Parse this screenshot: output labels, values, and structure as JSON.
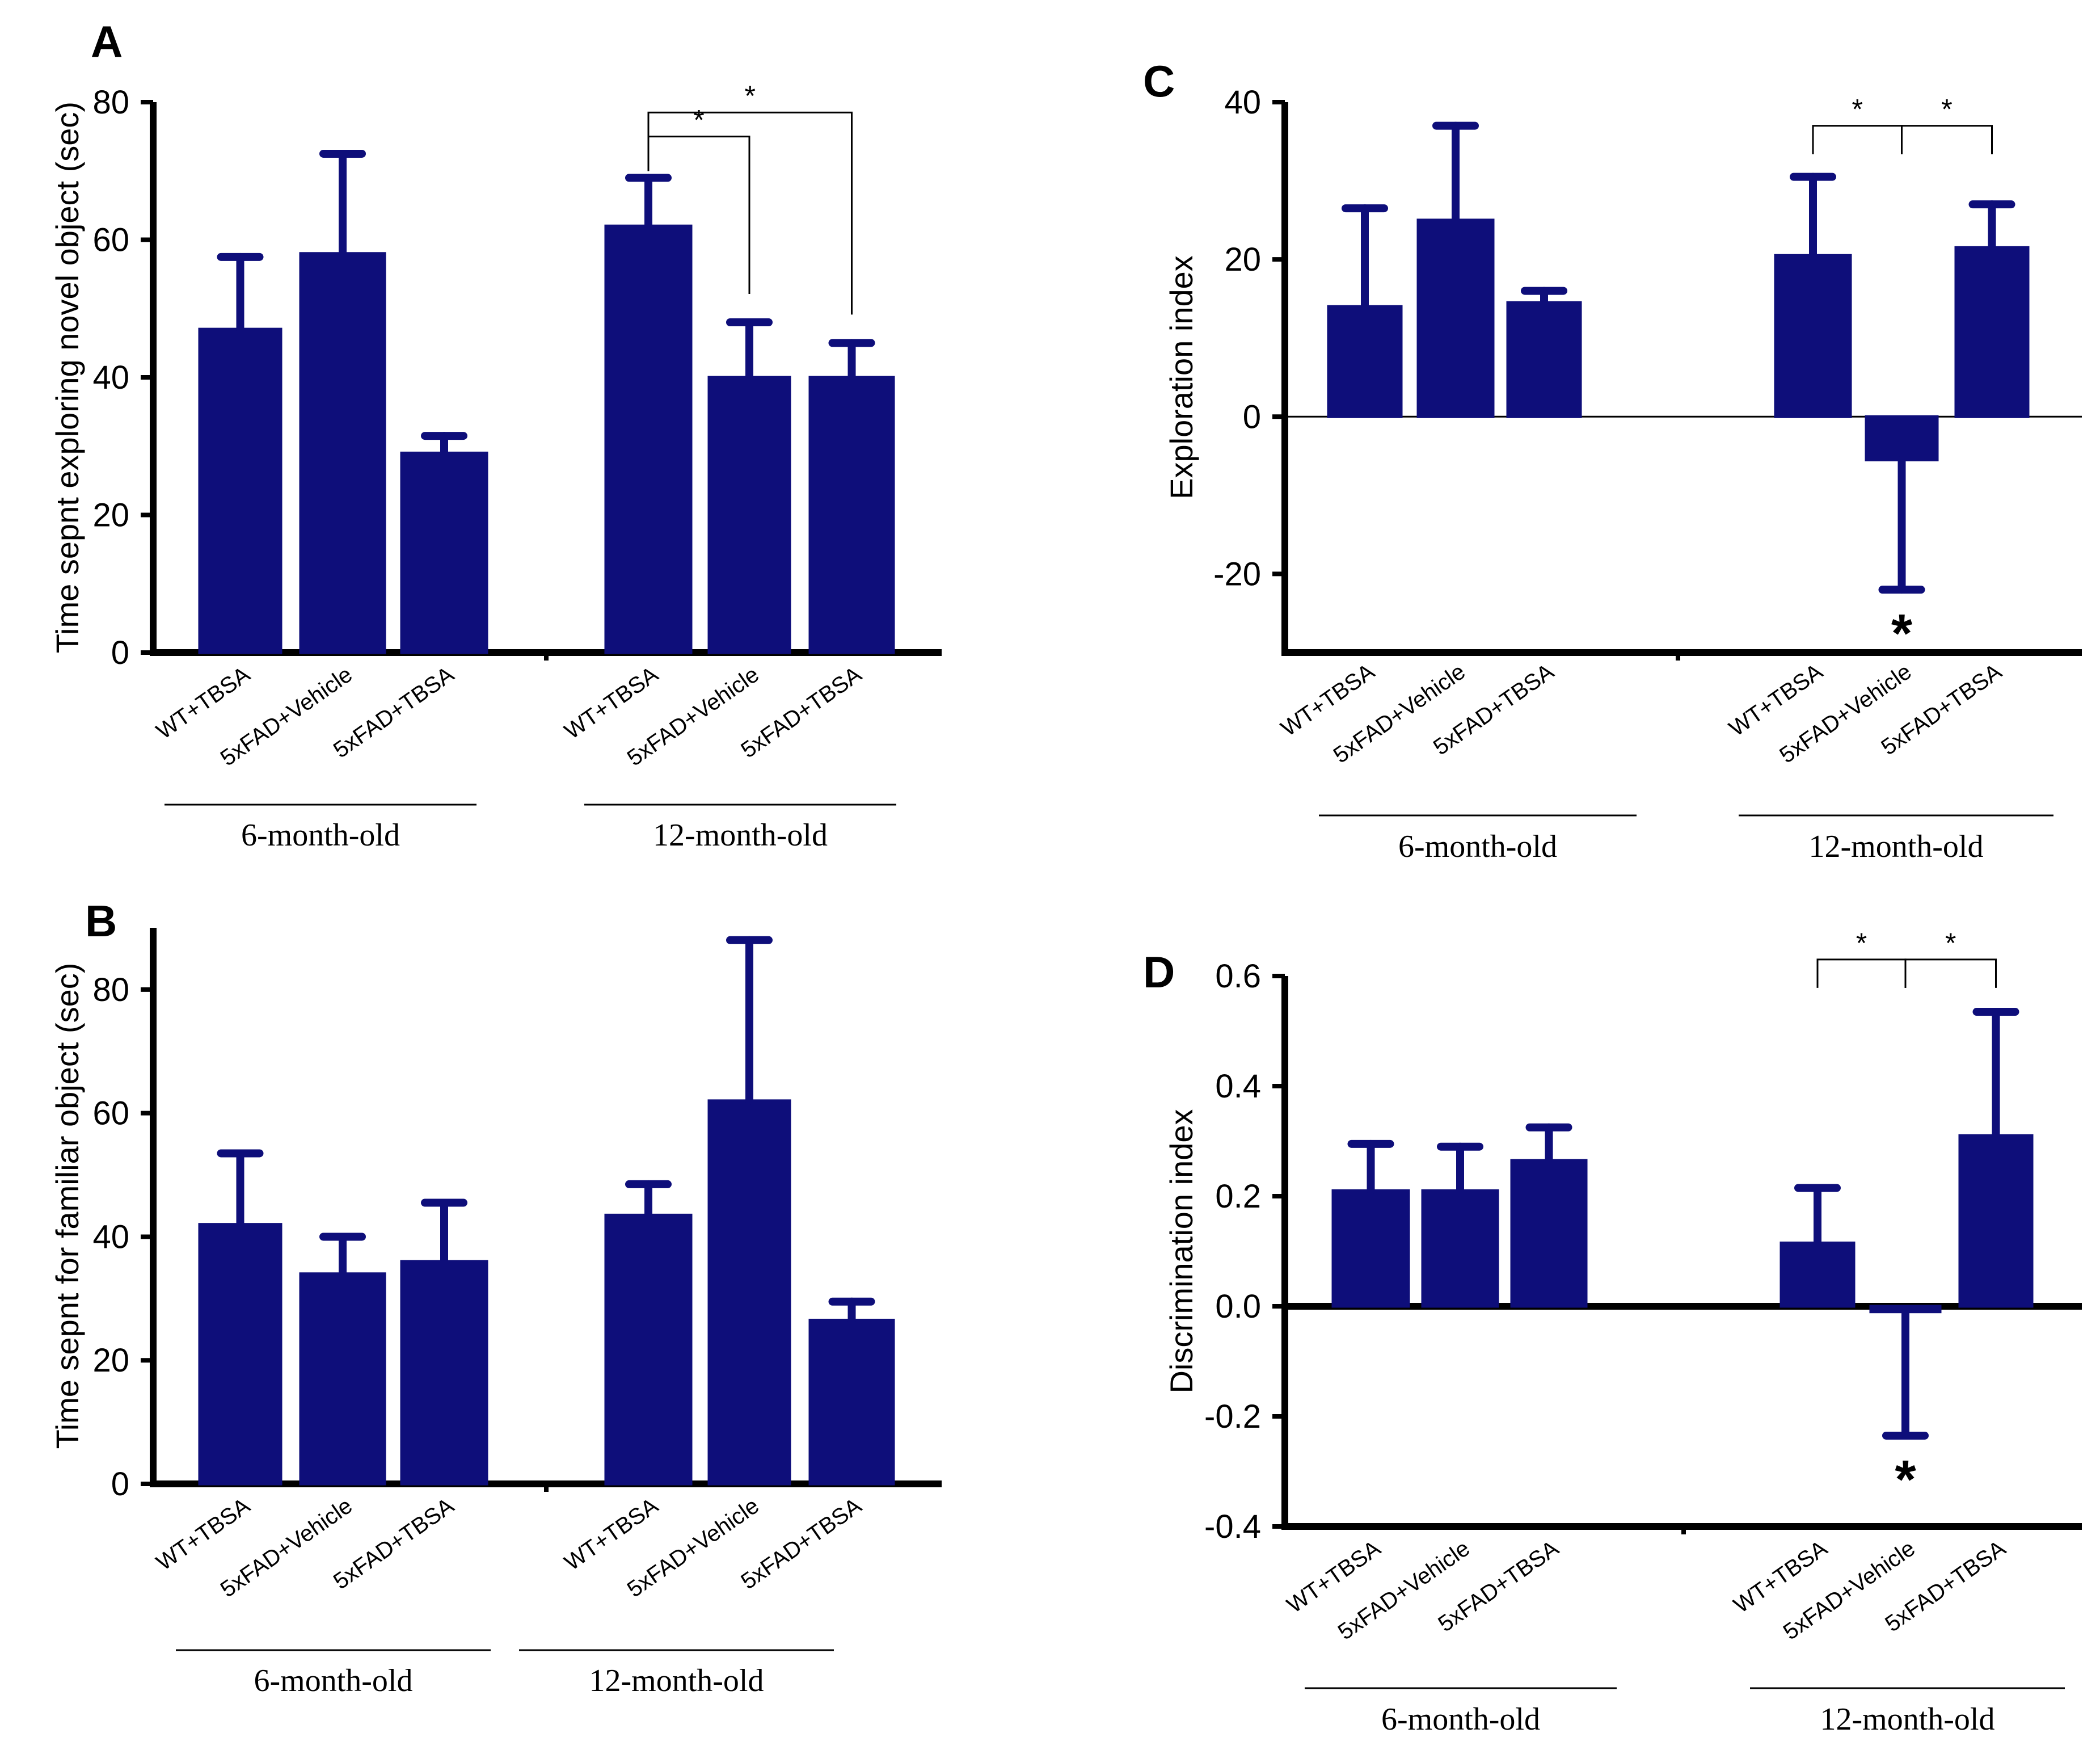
{
  "colors": {
    "bar": "#0e0e7a",
    "axis": "#000000"
  },
  "chart_data": [
    {
      "type": "bar",
      "panel": "A",
      "ylabel": "Time sepnt exploring novel object (sec)",
      "ylim": [
        0,
        80
      ],
      "yticks": [
        0,
        20,
        40,
        60,
        80
      ],
      "groups": [
        {
          "label": "6-month-old",
          "categories": [
            "WT+TBSA",
            "5xFAD+Vehicle",
            "5xFAD+TBSA"
          ],
          "values": [
            47,
            58,
            29
          ],
          "errors": [
            10.5,
            14.5,
            2.5
          ]
        },
        {
          "label": "12-month-old",
          "categories": [
            "WT+TBSA",
            "5xFAD+Vehicle",
            "5xFAD+TBSA"
          ],
          "values": [
            62,
            40,
            40
          ],
          "errors": [
            7,
            8,
            5
          ]
        }
      ],
      "significance": [
        {
          "group": 1,
          "from": 0,
          "to": 1,
          "y": 75,
          "label": "*"
        },
        {
          "group": 1,
          "from": 0,
          "to": 2,
          "y": 78.5,
          "label": "*"
        }
      ],
      "outlier_stars": []
    },
    {
      "type": "bar",
      "panel": "B",
      "ylabel": "Time sepnt for familiar object (sec)",
      "ylim": [
        0,
        90
      ],
      "yticks": [
        0,
        20,
        40,
        60,
        80
      ],
      "groups": [
        {
          "label": "6-month-old",
          "categories": [
            "WT+TBSA",
            "5xFAD+Vehicle",
            "5xFAD+TBSA"
          ],
          "values": [
            42,
            34,
            36
          ],
          "errors": [
            11.5,
            6,
            9.5
          ]
        },
        {
          "label": "12-month-old",
          "categories": [
            "WT+TBSA",
            "5xFAD+Vehicle",
            "5xFAD+TBSA"
          ],
          "values": [
            43.5,
            62,
            26.5
          ],
          "errors": [
            5,
            26,
            3
          ]
        }
      ],
      "significance": [],
      "outlier_stars": []
    },
    {
      "type": "bar",
      "panel": "C",
      "ylabel": "Exploration index",
      "ylim": [
        -30,
        40
      ],
      "yticks": [
        -20,
        0,
        20,
        40
      ],
      "groups": [
        {
          "label": "6-month-old",
          "categories": [
            "WT+TBSA",
            "5xFAD+Vehicle",
            "5xFAD+TBSA"
          ],
          "values": [
            14,
            25,
            14.5
          ],
          "errors": [
            12.5,
            12,
            1.5
          ]
        },
        {
          "label": "12-month-old",
          "categories": [
            "WT+TBSA",
            "5xFAD+Vehicle",
            "5xFAD+TBSA"
          ],
          "values": [
            20.5,
            -5.5,
            21.5
          ],
          "errors": [
            10,
            16.5,
            5.5
          ]
        }
      ],
      "significance": [
        {
          "group": 1,
          "from": 0,
          "to": 1,
          "y": 37,
          "label": "*"
        },
        {
          "group": 1,
          "from": 1,
          "to": 2,
          "y": 37,
          "label": "*"
        }
      ],
      "outlier_stars": [
        {
          "group": 1,
          "index": 1,
          "label": "*"
        }
      ]
    },
    {
      "type": "bar",
      "panel": "D",
      "ylabel": "Discrimination index",
      "ylim": [
        -0.4,
        0.6
      ],
      "yticks": [
        -0.4,
        -0.2,
        0.0,
        0.2,
        0.4,
        0.6
      ],
      "groups": [
        {
          "label": "6-month-old",
          "categories": [
            "WT+TBSA",
            "5xFAD+Vehicle",
            "5xFAD+TBSA"
          ],
          "values": [
            0.21,
            0.21,
            0.265
          ],
          "errors": [
            0.085,
            0.08,
            0.06
          ]
        },
        {
          "label": "12-month-old",
          "categories": [
            "WT+TBSA",
            "5xFAD+Vehicle",
            "5xFAD+TBSA"
          ],
          "values": [
            0.115,
            -0.01,
            0.31
          ],
          "errors": [
            0.1,
            0.225,
            0.225
          ]
        }
      ],
      "significance": [
        {
          "group": 1,
          "from": 0,
          "to": 1,
          "y": 0.63,
          "label": "*"
        },
        {
          "group": 1,
          "from": 1,
          "to": 2,
          "y": 0.63,
          "label": "*"
        }
      ],
      "outlier_stars": [
        {
          "group": 1,
          "index": 1,
          "label": "*"
        }
      ]
    }
  ]
}
